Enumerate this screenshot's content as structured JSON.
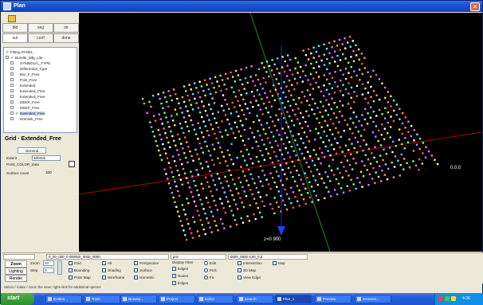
{
  "window": {
    "title": "Plan",
    "close": "×"
  },
  "left_panel": {
    "tabs": [
      "bld",
      "seg",
      "str",
      "out",
      "conf",
      "done"
    ],
    "tree": [
      {
        "label": "Fitting PANEL",
        "checked": true,
        "indent": 0,
        "expander": false
      },
      {
        "label": "Bundle_Mfg_Lite",
        "checked": true,
        "indent": 0,
        "expander": true
      },
      {
        "label": "SYMBOLIC_TYPE",
        "checked": false,
        "indent": 1,
        "expander": true
      },
      {
        "label": "Differential_Type",
        "checked": false,
        "indent": 1,
        "expander": true
      },
      {
        "label": "Bar_F_Free",
        "checked": false,
        "indent": 1,
        "expander": true
      },
      {
        "label": "Pole_Free",
        "checked": false,
        "indent": 1,
        "expander": true
      },
      {
        "label": "Extended",
        "checked": false,
        "indent": 1,
        "expander": true
      },
      {
        "label": "Extended_Free",
        "checked": false,
        "indent": 1,
        "expander": true
      },
      {
        "label": "Extended_Free",
        "checked": false,
        "indent": 1,
        "expander": true
      },
      {
        "label": "DEEP_Free",
        "checked": false,
        "indent": 1,
        "expander": true
      },
      {
        "label": "DEEP_Free",
        "checked": false,
        "indent": 1,
        "expander": true
      },
      {
        "label": "Extended_Free",
        "checked": true,
        "indent": 1,
        "expander": true,
        "selected": true
      },
      {
        "label": "Dominik_Free",
        "checked": false,
        "indent": 1,
        "expander": true
      }
    ],
    "props_title": "Grid · Extended_Free",
    "props_tab": "General",
    "props": [
      {
        "label": "Extent",
        "value": "100mm"
      },
      {
        "label": "Point_COLOR_data",
        "value": ""
      },
      {
        "label": "Surface count",
        "value": "100"
      }
    ]
  },
  "viewport": {
    "coord_right": "0,0,0",
    "coord_bottom": "z=0 900"
  },
  "status": [
    "",
    "0_00_000_0 000000_0000_0000",
    "pnt",
    "0000_0000   0,00_0,0"
  ],
  "bottom": {
    "side_tabs": [
      "Zoom",
      "Lighting",
      "Render"
    ],
    "zoom_fields": [
      {
        "label": "Zoom",
        "value": "10"
      },
      {
        "label": "Step",
        "value": "0"
      }
    ],
    "options_col1": [
      "Grid",
      "Bounding",
      "Point Map"
    ],
    "options_col2": [
      "All",
      "Shading",
      "Wireframe"
    ],
    "options_col3": [
      "Perspective",
      "Surface",
      "Isometric"
    ],
    "options_col4_title": "Display Filter",
    "options_col4": [
      "Edges",
      "Nodes",
      "Edges"
    ],
    "options_col5": [
      "Edit",
      "Pick",
      "Fit"
    ],
    "options_col6": [
      "Intersection",
      "3D Map",
      "View Edge"
    ],
    "options_col7": [
      "Map"
    ]
  },
  "hint": "Select / rotate / zoom the view; right-click for additional options",
  "taskbar": {
    "start": "start",
    "tasks": [
      {
        "label": "Deskto..."
      },
      {
        "label": "Tools"
      },
      {
        "label": "Browse..."
      },
      {
        "label": "Project"
      },
      {
        "label": "Editor"
      },
      {
        "label": "Search"
      },
      {
        "label": "Plan_1"
      },
      {
        "label": "Preview"
      },
      {
        "label": "Screens..."
      }
    ],
    "clock": "4:36"
  }
}
